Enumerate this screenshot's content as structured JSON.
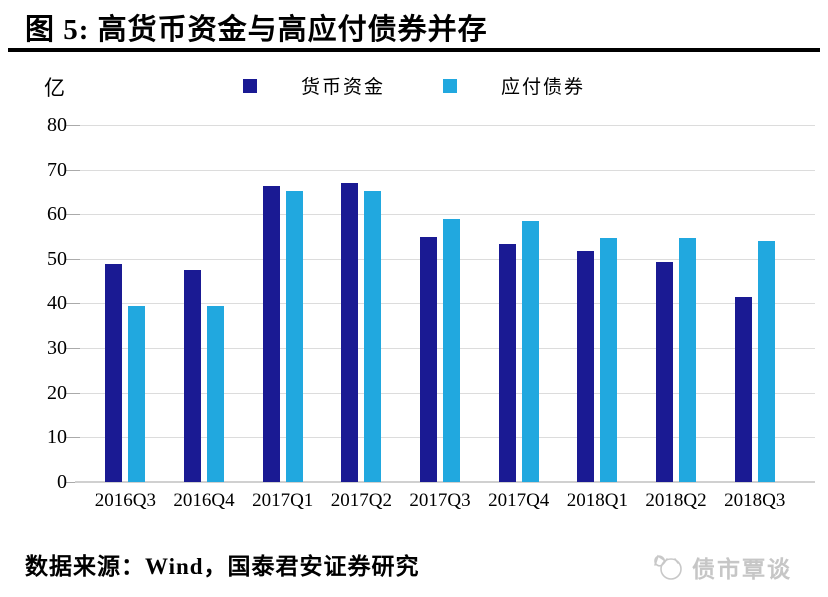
{
  "header": {
    "title": "图 5: 高货币资金与高应付债券并存"
  },
  "chart_data": {
    "type": "bar",
    "title": "图 5: 高货币资金与高应付债券并存",
    "unit": "亿",
    "categories": [
      "2016Q3",
      "2016Q4",
      "2017Q1",
      "2017Q2",
      "2017Q3",
      "2017Q4",
      "2018Q1",
      "2018Q2",
      "2018Q3"
    ],
    "series": [
      {
        "name": "货币资金",
        "color": "#1a1a93",
        "values": [
          48.8,
          47.5,
          66.3,
          67.0,
          55.0,
          53.3,
          51.8,
          49.3,
          41.5
        ]
      },
      {
        "name": "应付债券",
        "color": "#21a8df",
        "values": [
          39.5,
          39.5,
          65.2,
          65.2,
          59.0,
          58.5,
          54.7,
          54.7,
          54.0
        ]
      }
    ],
    "ylim": [
      0,
      80
    ],
    "ytick_step": 10,
    "yticks": [
      0,
      10,
      20,
      30,
      40,
      50,
      60,
      70,
      80
    ],
    "grid": true,
    "legend_position": "top-center"
  },
  "footer": {
    "source": "数据来源：Wind，国泰君安证券研究",
    "watermark": "债市覃谈"
  },
  "colors": {
    "series_money_funds": "#1a1a93",
    "series_bonds_payable": "#21a8df",
    "gridline": "#dcdcdc",
    "title_rule": "#000000",
    "watermark": "#c6c6c6"
  }
}
